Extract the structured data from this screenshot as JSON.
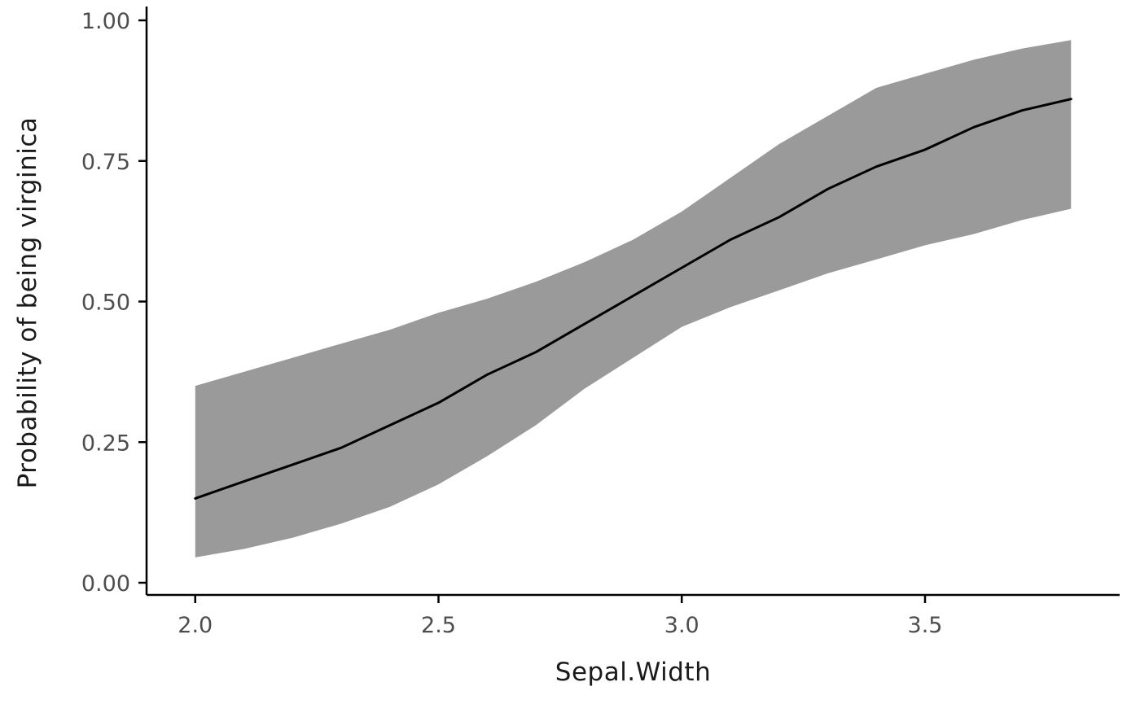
{
  "chart_data": {
    "type": "line",
    "title": "",
    "xlabel": "Sepal.Width",
    "ylabel": "Probability of being virginica",
    "grid": false,
    "legend": "none",
    "xlim": [
      1.9,
      3.9
    ],
    "ylim": [
      0,
      1
    ],
    "x_ticks": [
      {
        "v": 2.0,
        "label": "2.0"
      },
      {
        "v": 2.5,
        "label": "2.5"
      },
      {
        "v": 3.0,
        "label": "3.0"
      },
      {
        "v": 3.5,
        "label": "3.5"
      }
    ],
    "y_ticks": [
      {
        "v": 0.0,
        "label": "0.00"
      },
      {
        "v": 0.25,
        "label": "0.25"
      },
      {
        "v": 0.5,
        "label": "0.50"
      },
      {
        "v": 0.75,
        "label": "0.75"
      },
      {
        "v": 1.0,
        "label": "1.00"
      }
    ],
    "x": [
      2.0,
      2.1,
      2.2,
      2.3,
      2.4,
      2.5,
      2.6,
      2.7,
      2.8,
      2.9,
      3.0,
      3.1,
      3.2,
      3.3,
      3.4,
      3.5,
      3.6,
      3.7,
      3.8
    ],
    "series": [
      {
        "name": "fitted_probability",
        "values": [
          0.15,
          0.18,
          0.21,
          0.24,
          0.28,
          0.32,
          0.37,
          0.41,
          0.46,
          0.51,
          0.56,
          0.61,
          0.65,
          0.7,
          0.74,
          0.77,
          0.81,
          0.84,
          0.86
        ]
      },
      {
        "name": "ci_upper",
        "values": [
          0.35,
          0.375,
          0.4,
          0.425,
          0.45,
          0.48,
          0.505,
          0.535,
          0.57,
          0.61,
          0.66,
          0.72,
          0.78,
          0.83,
          0.88,
          0.905,
          0.93,
          0.95,
          0.965
        ]
      },
      {
        "name": "ci_lower",
        "values": [
          0.045,
          0.06,
          0.08,
          0.105,
          0.135,
          0.175,
          0.225,
          0.28,
          0.345,
          0.4,
          0.455,
          0.49,
          0.52,
          0.55,
          0.575,
          0.6,
          0.62,
          0.645,
          0.665
        ]
      }
    ],
    "colors": {
      "line": "#000000",
      "ribbon": "#9a9a9a",
      "axis": "#000000",
      "tick_label": "#4d4d4d",
      "axis_title": "#1a1a1a",
      "background": "#ffffff"
    }
  }
}
